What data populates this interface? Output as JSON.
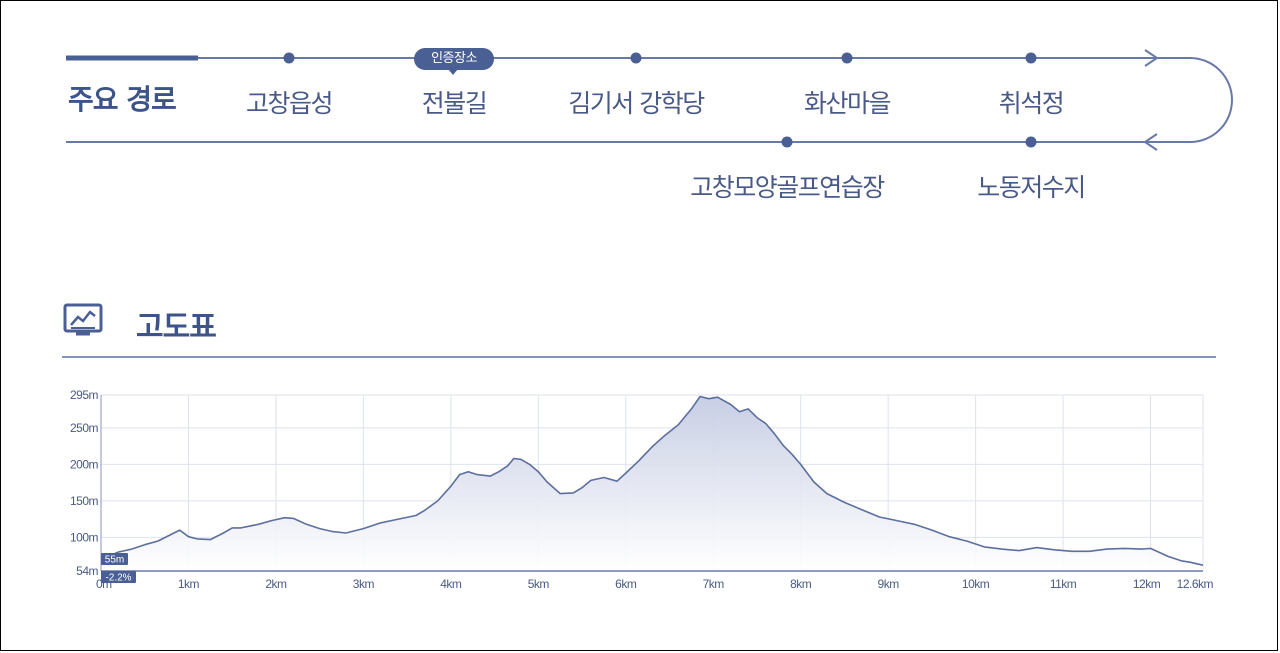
{
  "route": {
    "title": "주요 경로",
    "badge": "인증장소",
    "top_stops": [
      "고창읍성",
      "전불길",
      "김기서 강학당",
      "화산마을",
      "취석정"
    ],
    "bottom_stops": [
      "고창모양골프연습장",
      "노동저수지"
    ]
  },
  "elevation": {
    "title": "고도표",
    "start_elevation_label": "55m",
    "start_grade_label": "-2.2%"
  },
  "colors": {
    "line": "#5d6f9e",
    "text": "#4a5a87",
    "accent": "#3d5488",
    "fill_top": "#c5cce3"
  },
  "chart_data": {
    "type": "area",
    "title": "",
    "xlabel": "",
    "ylabel": "",
    "xlim": [
      0,
      12.6
    ],
    "ylim": [
      54,
      295
    ],
    "x_ticks": [
      0,
      1,
      2,
      3,
      4,
      5,
      6,
      7,
      8,
      9,
      10,
      11,
      12,
      12.6
    ],
    "x_tick_labels": [
      "0m",
      "1km",
      "2km",
      "3km",
      "4km",
      "5km",
      "6km",
      "7km",
      "8km",
      "9km",
      "10km",
      "11km",
      "12km",
      "12.6km"
    ],
    "y_ticks": [
      54,
      100,
      150,
      200,
      250,
      295
    ],
    "y_tick_labels": [
      "54m",
      "100m",
      "150m",
      "200m",
      "250m",
      "295m"
    ],
    "grid": true,
    "series": [
      {
        "x": [
          0,
          0.1,
          0.2,
          0.35,
          0.5,
          0.65,
          0.8,
          0.9,
          1.0,
          1.1,
          1.25,
          1.4,
          1.5,
          1.6,
          1.8,
          1.95,
          2.1,
          2.2,
          2.35,
          2.5,
          2.65,
          2.8,
          3.0,
          3.2,
          3.4,
          3.6,
          3.7,
          3.85,
          4.0,
          4.1,
          4.2,
          4.3,
          4.45,
          4.55,
          4.65,
          4.72,
          4.8,
          4.9,
          5.0,
          5.1,
          5.25,
          5.4,
          5.5,
          5.6,
          5.75,
          5.9,
          6.0,
          6.15,
          6.3,
          6.45,
          6.6,
          6.75,
          6.85,
          6.95,
          7.05,
          7.2,
          7.3,
          7.4,
          7.5,
          7.6,
          7.7,
          7.8,
          7.9,
          8.0,
          8.15,
          8.3,
          8.5,
          8.7,
          8.9,
          9.1,
          9.3,
          9.5,
          9.7,
          9.9,
          10.1,
          10.3,
          10.5,
          10.7,
          10.9,
          11.1,
          11.3,
          11.5,
          11.7,
          11.9,
          12.0,
          12.2,
          12.35,
          12.45,
          12.6
        ],
        "values": [
          72,
          75,
          80,
          84,
          90,
          95,
          104,
          110,
          101,
          98,
          97,
          106,
          113,
          113,
          118,
          123,
          127,
          126,
          118,
          112,
          108,
          106,
          112,
          120,
          125,
          130,
          137,
          150,
          170,
          186,
          190,
          186,
          184,
          190,
          198,
          208,
          207,
          200,
          190,
          176,
          160,
          161,
          168,
          178,
          182,
          177,
          188,
          205,
          224,
          240,
          254,
          276,
          293,
          290,
          292,
          282,
          272,
          276,
          264,
          256,
          242,
          226,
          214,
          200,
          176,
          160,
          148,
          138,
          128,
          123,
          118,
          110,
          101,
          95,
          87,
          84,
          82,
          86,
          83,
          81,
          81,
          84,
          85,
          84,
          85,
          74,
          68,
          66,
          62
        ]
      }
    ]
  }
}
